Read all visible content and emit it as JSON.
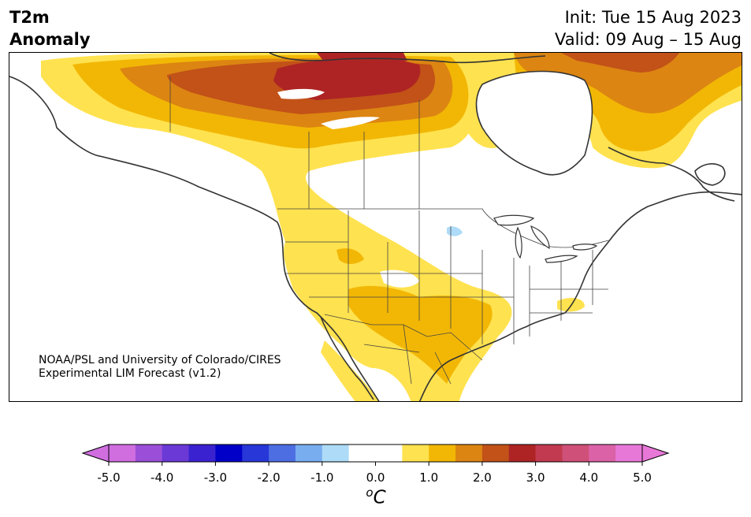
{
  "title": {
    "variable": "T2m",
    "type": "Anomaly",
    "init": "Init: Tue 15 Aug 2023",
    "valid": "Valid: 09 Aug – 15 Aug"
  },
  "credit": {
    "line1": "NOAA/PSL and University of Colorado/CIRES",
    "line2": "Experimental LIM Forecast (v1.2)"
  },
  "colorbar": {
    "unit_superscript": "o",
    "unit_base": "C",
    "ticks": [
      "-5.0",
      "-4.0",
      "-3.0",
      "-2.0",
      "-1.0",
      "0.0",
      "1.0",
      "2.0",
      "3.0",
      "4.0",
      "5.0"
    ],
    "bins": [
      {
        "from": -5.0,
        "to": -4.5,
        "color": "#d06ee0"
      },
      {
        "from": -4.5,
        "to": -4.0,
        "color": "#9b4fd8"
      },
      {
        "from": -4.0,
        "to": -3.5,
        "color": "#6a39d6"
      },
      {
        "from": -3.5,
        "to": -3.0,
        "color": "#3a22d0"
      },
      {
        "from": -3.0,
        "to": -2.5,
        "color": "#0000c8"
      },
      {
        "from": -2.5,
        "to": -2.0,
        "color": "#2737d8"
      },
      {
        "from": -2.0,
        "to": -1.5,
        "color": "#4d6ee3"
      },
      {
        "from": -1.5,
        "to": -1.0,
        "color": "#78aef0"
      },
      {
        "from": -1.0,
        "to": -0.5,
        "color": "#aedcf8"
      },
      {
        "from": -0.5,
        "to": 0.5,
        "color": "#ffffff"
      },
      {
        "from": 0.5,
        "to": 1.0,
        "color": "#ffe24f"
      },
      {
        "from": 1.0,
        "to": 1.5,
        "color": "#f2b705"
      },
      {
        "from": 1.5,
        "to": 2.0,
        "color": "#dc8512"
      },
      {
        "from": 2.0,
        "to": 2.5,
        "color": "#c25218"
      },
      {
        "from": 2.5,
        "to": 3.0,
        "color": "#ae2424"
      },
      {
        "from": 3.0,
        "to": 3.5,
        "color": "#c13a50"
      },
      {
        "from": 3.5,
        "to": 4.0,
        "color": "#cf5078"
      },
      {
        "from": 4.0,
        "to": 4.5,
        "color": "#dc62a8"
      },
      {
        "from": 4.5,
        "to": 5.0,
        "color": "#e878d8"
      }
    ],
    "extend_low_color": "#d06ee0",
    "extend_high_color": "#e878d8"
  },
  "map": {
    "region": "North America",
    "land_color": "#ffffff",
    "coastline_color": "#333333",
    "border_color": "#444444"
  }
}
